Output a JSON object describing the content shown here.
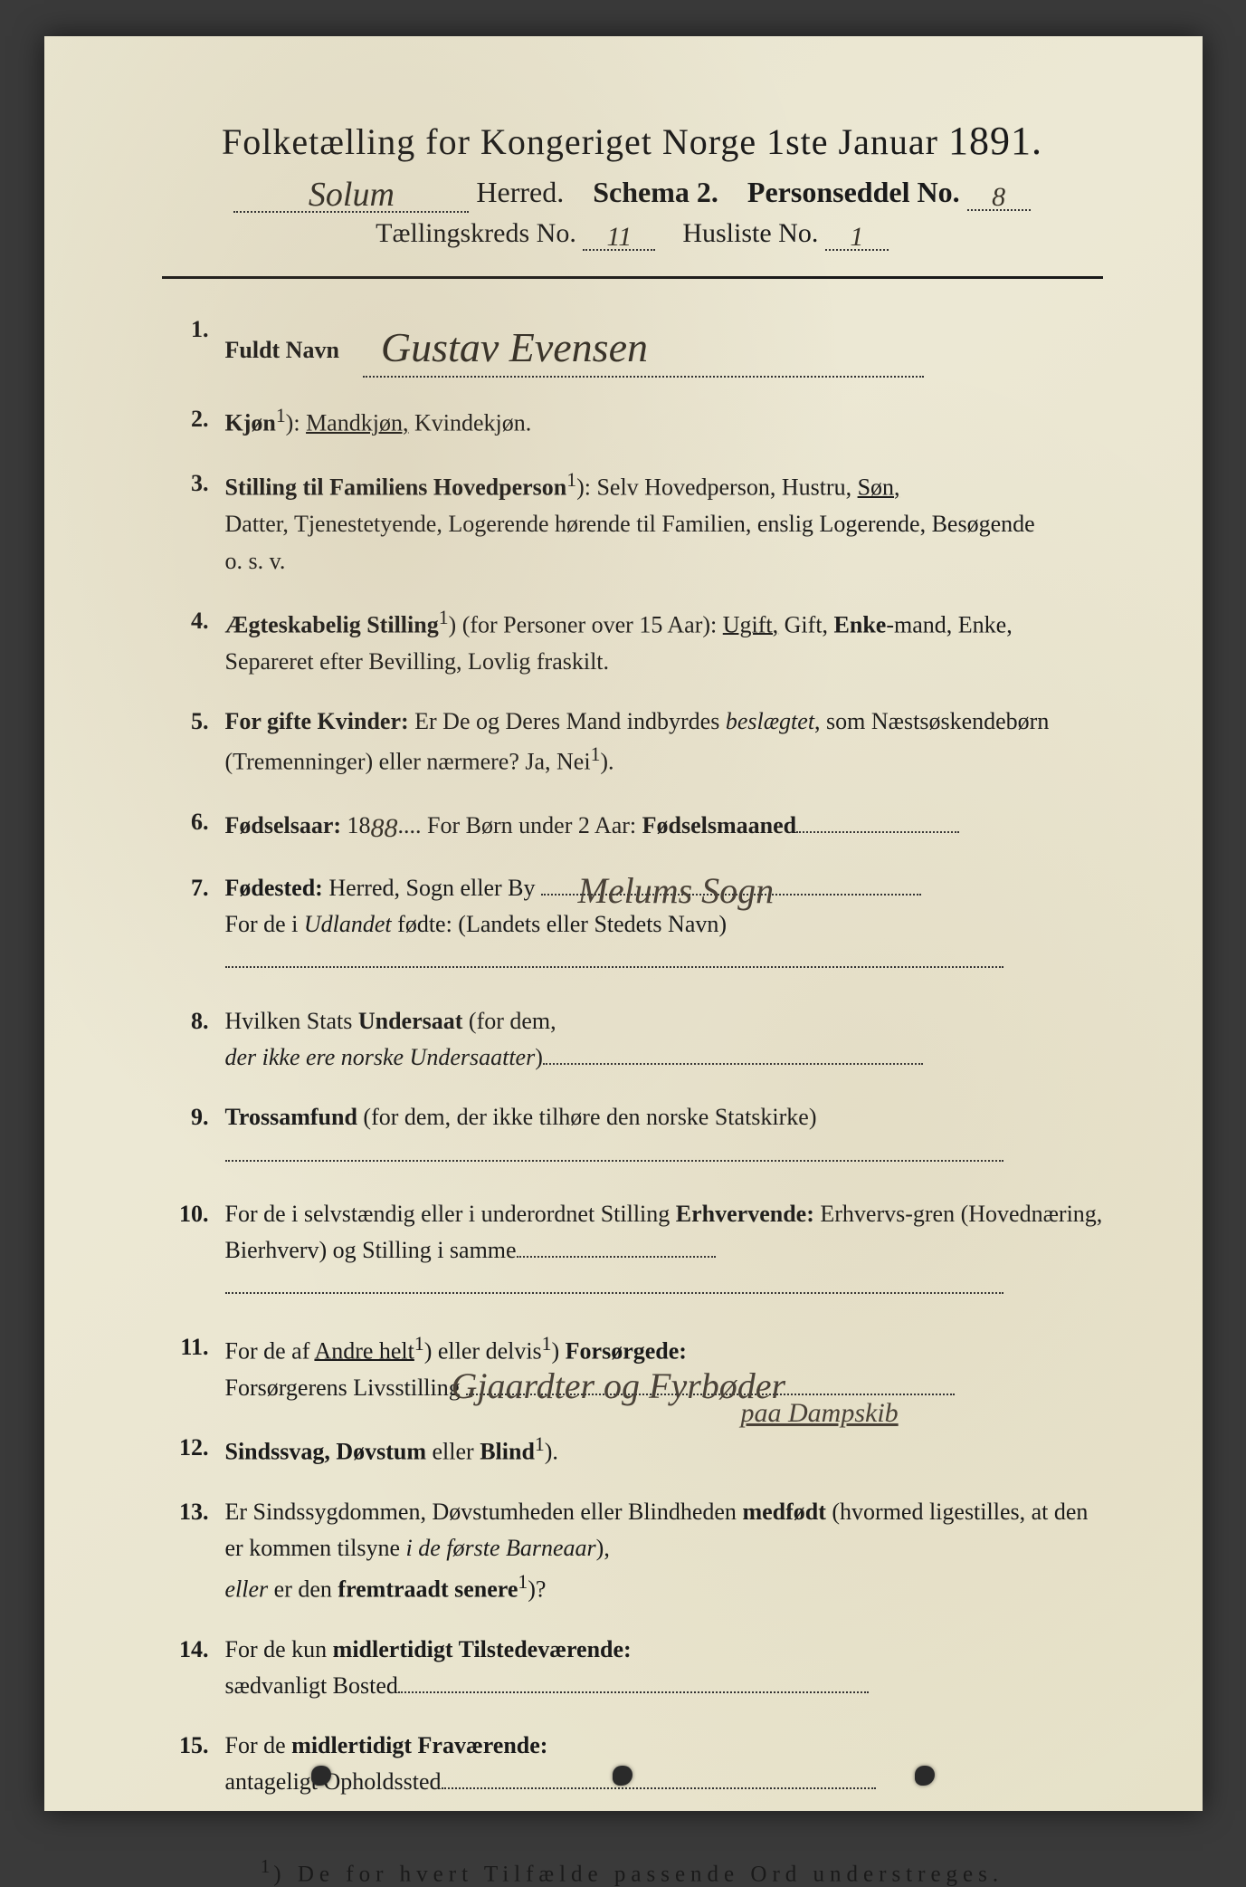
{
  "colors": {
    "paper_bg": "#e8e4ce",
    "ink": "#1a1a1a",
    "handwriting": "#3a342a",
    "page_bg": "#3a3a3a"
  },
  "typography": {
    "title_fontsize": 40,
    "subline_fontsize": 32,
    "item_fontsize": 26,
    "footnote_fontsize": 25,
    "handwriting_fontsize": 38
  },
  "header": {
    "title_prefix": "Folketælling for Kongeriget Norge 1ste Januar",
    "year": "1891.",
    "herred_hw": "Solum",
    "herred_label": "Herred.",
    "schema_label": "Schema 2.",
    "personseddel_label": "Personseddel No.",
    "personseddel_no": "8",
    "kreds_label": "Tællingskreds No.",
    "kreds_no": "11",
    "husliste_label": "Husliste No.",
    "husliste_no": "1"
  },
  "items": [
    {
      "n": "1.",
      "label": "Fuldt Navn",
      "hw": "Gustav Evensen"
    },
    {
      "n": "2.",
      "label": "Kjøn",
      "sup": "1",
      "rest": "): ",
      "opt_underlined": "Mandkjøn,",
      "opt_rest": " Kvindekjøn."
    },
    {
      "n": "3.",
      "label": "Stilling til Familiens Hovedperson",
      "sup": "1",
      "rest": "): Selv Hovedperson, Hustru, ",
      "opt_underlined": "Søn,",
      "cont": "Datter, Tjenestetyende, Logerende hørende til Familien, enslig Logerende, Besøgende",
      "cont2": "o. s. v."
    },
    {
      "n": "4.",
      "label": "Ægteskabelig Stilling",
      "sup": "1",
      "rest": ") (for Personer over 15 Aar): ",
      "opt_underlined": "Ugift,",
      "opt_rest": " Gift, ",
      "opt_bold": "Enke",
      "opt_after": "-mand, Enke, Separeret efter Bevilling, Lovlig fraskilt."
    },
    {
      "n": "5.",
      "label": "For gifte Kvinder:",
      "rest": " Er De og Deres Mand indbyrdes ",
      "ital": "beslægtet",
      "rest2": ", som Næstsøskendebørn (Tremenninger) eller nærmere?  Ja, Nei",
      "sup2": "1",
      "rest3": ")."
    },
    {
      "n": "6.",
      "label": "Fødselsaar:",
      "rest_plain": " 18",
      "hw_inline": "88",
      "rest_after": "....   For Børn under 2 Aar: ",
      "label2": "Fødselsmaaned",
      "trail_dots": 180
    },
    {
      "n": "7.",
      "label": "Fødested:",
      "rest_plain": " Herred, Sogn eller By",
      "hw_right": "Melums Sogn",
      "cont": "For de i ",
      "ital2": "Udlandet",
      "cont_after": " fødte: (Landets eller Stedets Navn)",
      "blank_line": true
    },
    {
      "n": "8.",
      "text": "Hvilken Stats ",
      "bold_mid": "Undersaat",
      "text2": " (for dem,",
      "cont_ital": "der ikke ere norske Undersaatter",
      "cont_after2": ")",
      "trail_dots": 420
    },
    {
      "n": "9.",
      "label": "Trossamfund",
      "rest_plain": "  (for dem, der ikke tilhøre den norske Statskirke)",
      "blank_line": true
    },
    {
      "n": "10.",
      "text": "For de i selvstændig eller i underordnet Stilling ",
      "bold_mid": "Erhvervende:",
      "text2": " Erhvervs-gren (Hovednæring, Bierhverv) og Stilling i samme",
      "trail_dots": 220,
      "blank_line": true
    },
    {
      "n": "11.",
      "text": "For de af ",
      "und1": "Andre helt",
      "sup": "1",
      "mid": ") eller delvis",
      "sup2": "1",
      "mid2": ") ",
      "bold_mid": "Forsørgede:",
      "cont": "Forsørgerens Livsstilling",
      "hw_right2": "Gjaardter og Fyrbøder",
      "hw_below": "paa Dampskib"
    },
    {
      "n": "12.",
      "label": "Sindssvag, Døvstum",
      "rest_plain": " eller ",
      "bold2": "Blind",
      "sup": "1",
      "rest_after": ")."
    },
    {
      "n": "13.",
      "text": "Er Sindssygdommen, Døvstumheden eller Blindheden ",
      "bold_mid": "medfødt",
      "text2": " (hvormed ligestilles, at den er kommen tilsyne ",
      "ital3": "i de første Barneaar",
      "text3": "),",
      "cont_ital2": "eller",
      "cont_after3": " er den ",
      "bold3": "fremtraadt senere",
      "sup3": "1",
      "cont_end": ")?"
    },
    {
      "n": "14.",
      "text": "For de kun ",
      "bold_mid": "midlertidigt Tilstedeværende:",
      "cont": "sædvanligt Bosted",
      "trail_dots": 520
    },
    {
      "n": "15.",
      "text": "For de ",
      "bold_mid": "midlertidigt Fraværende:",
      "cont": "antageligt Opholdssted",
      "trail_dots": 480
    }
  ],
  "footnote": {
    "sup": "1",
    "text": ") De for hvert Tilfælde passende Ord understreges."
  }
}
